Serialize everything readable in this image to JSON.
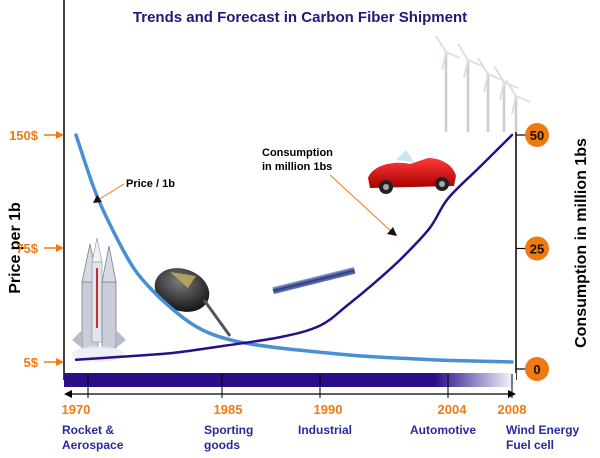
{
  "chart_data": {
    "type": "line",
    "title": "Trends and Forecast in Carbon Fiber Shipment",
    "y_left_label": "Price per 1b",
    "y_right_label": "Consumption in million 1bs",
    "y_left_ticks": [
      "150$",
      "75$",
      "5$"
    ],
    "y_right_ticks": [
      "50",
      "25",
      "0"
    ],
    "x_ticks": [
      "1970",
      "1985",
      "1990",
      "2004",
      "2008"
    ],
    "applications": [
      [
        "Rocket &",
        "Aerospace"
      ],
      [
        "Sporting",
        "goods"
      ],
      [
        "Industrial"
      ],
      [
        "Automotive"
      ],
      [
        "Wind Energy",
        "Fuel cell"
      ]
    ],
    "annotations": {
      "price": "Price / 1b",
      "consumption": [
        "Consumption",
        "in million 1bs"
      ]
    },
    "series": [
      {
        "name": "Price / 1b",
        "axis": "left",
        "color": "#4a8fd6",
        "x": [
          1970,
          1972,
          1974,
          1976,
          1978,
          1980,
          1982,
          1984,
          1986,
          1988,
          1990,
          1995,
          2000,
          2004,
          2008
        ],
        "y": [
          150,
          112,
          84,
          62,
          48,
          37,
          28,
          22,
          17,
          13.5,
          11,
          8.5,
          7,
          6,
          5
        ]
      },
      {
        "name": "Consumption in million 1bs",
        "axis": "right",
        "color": "#2a0f86",
        "x": [
          1970,
          1975,
          1980,
          1985,
          1988,
          1990,
          1993,
          1996,
          1999,
          2002,
          2004,
          2006,
          2008
        ],
        "y": [
          0.5,
          1.2,
          2,
          3.5,
          5.5,
          8,
          12.5,
          17.5,
          23,
          29.5,
          36,
          43,
          50
        ]
      }
    ]
  },
  "colors": {
    "title": "#1d1a7a",
    "orange": "#f07a10",
    "timeline": "#2a0f86",
    "price_line": "#4a8fd6",
    "consumption_line": "#2a0f86"
  },
  "icons": [
    "rocket-image",
    "golf-club-image",
    "industrial-rod-image",
    "sports-car-image",
    "wind-turbines-image"
  ]
}
